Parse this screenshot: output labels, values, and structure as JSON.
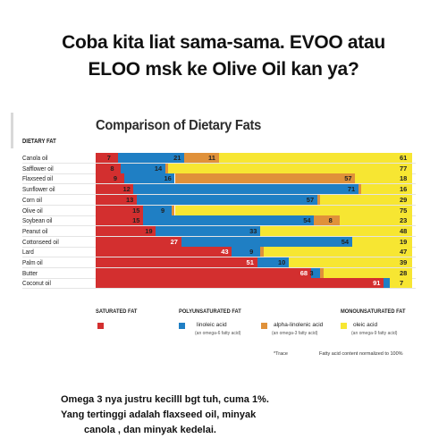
{
  "headline": {
    "line1": "Coba kita liat sama-sama. EVOO atau",
    "line2": "ELOO msk ke Olive Oil kan ya?"
  },
  "chart_data": {
    "type": "bar",
    "stacked": true,
    "orientation": "horizontal",
    "title": "Comparison of Dietary Fats",
    "ylabel": "DIETARY FAT",
    "categories": [
      "Canola oil",
      "Safflower oil",
      "Flaxseed oil",
      "Sunflower oil",
      "Corn oil",
      "Olive oil",
      "Soybean oil",
      "Peanut oil",
      "Cottonseed oil",
      "Lard",
      "Palm oil",
      "Butter",
      "Coconut oil"
    ],
    "series": [
      {
        "name": "SATURATED FAT",
        "color": "#d32f2f",
        "values": [
          7,
          8,
          9,
          12,
          13,
          15,
          15,
          19,
          27,
          43,
          51,
          68,
          91
        ]
      },
      {
        "name": "linoleic acid",
        "color": "#1f7fc4",
        "values": [
          21,
          14,
          16,
          71,
          57,
          9,
          54,
          33,
          54,
          9,
          10,
          3,
          2
        ]
      },
      {
        "name": "alpha-linolenic acid",
        "color": "#e0913a",
        "values": [
          11,
          1,
          57,
          1,
          1,
          1,
          8,
          0,
          0,
          1,
          0,
          1,
          0
        ]
      },
      {
        "name": "oleic acid",
        "color": "#f7e632",
        "values": [
          61,
          77,
          18,
          16,
          29,
          75,
          23,
          48,
          19,
          47,
          39,
          28,
          7
        ]
      }
    ],
    "trace_rows": [
      7,
      8
    ],
    "xlim": [
      0,
      100
    ],
    "legend": {
      "saturated_header": "SATURATED FAT",
      "poly_header": "POLYUNSATURATED FAT",
      "mono_header": "MONOUNSATURATED FAT",
      "linoleic_sub": "(an omega-6 fatty acid)",
      "alpha_sub": "(an omega-3 fatty acid)",
      "oleic_sub": "(an omega-9 fatty acid)",
      "trace_note": "*Trace",
      "normalized_note": "Fatty acid content normalized to 100%"
    }
  },
  "caption": {
    "line1": "Omega 3 nya justru kecilll bgt tuh, cuma 1%.",
    "line2": "Yang tertinggi adalah flaxseed oil, minyak",
    "line3": "canola , dan minyak kedelai."
  }
}
